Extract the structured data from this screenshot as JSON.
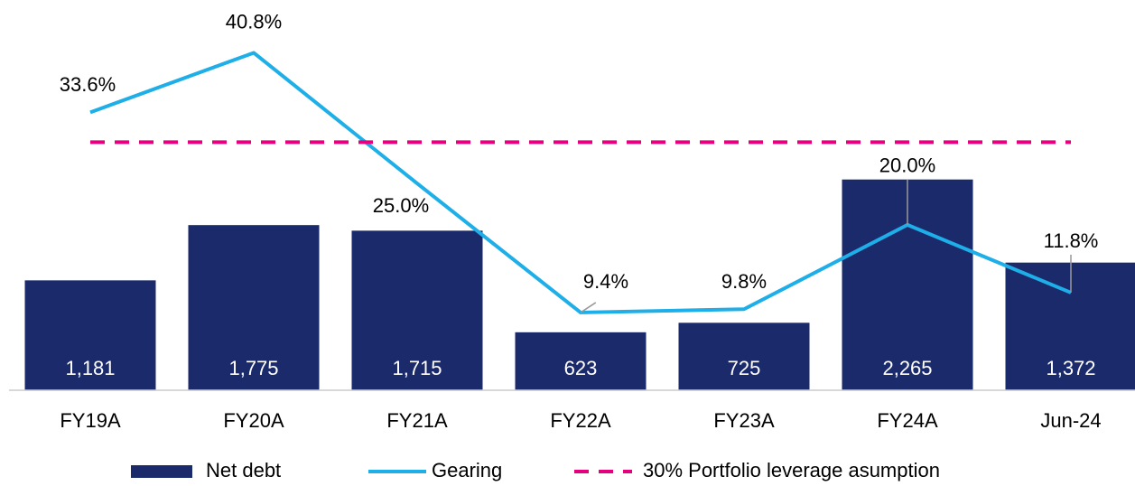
{
  "chart_data": {
    "type": "bar_line",
    "categories": [
      "FY19A",
      "FY20A",
      "FY21A",
      "FY22A",
      "FY23A",
      "FY24A",
      "Jun-24"
    ],
    "ylim": [
      0,
      4000
    ],
    "y2lim": [
      0,
      45
    ],
    "legend": "bottom",
    "series": [
      {
        "name": "Net debt",
        "type": "bar",
        "color": "#1b2a6b",
        "values": [
          1181,
          1775,
          1715,
          623,
          725,
          2265,
          1372
        ],
        "value_labels": [
          "1,181",
          "1,775",
          "1,715",
          "623",
          "725",
          "2,265",
          "1,372"
        ]
      },
      {
        "name": "Gearing",
        "type": "line",
        "axis": "y2",
        "color": "#1eaee8",
        "values": [
          33.6,
          40.8,
          25.0,
          9.4,
          9.8,
          20.0,
          11.8
        ],
        "value_labels": [
          "33.6%",
          "40.8%",
          "25.0%",
          "9.4%",
          "9.8%",
          "20.0%",
          "11.8%"
        ]
      },
      {
        "name": "30% Portfolio leverage asumption",
        "type": "dashed",
        "axis": "y2",
        "color": "#e6007e",
        "values": [
          30,
          30,
          30,
          30,
          30,
          30,
          30
        ]
      }
    ]
  }
}
